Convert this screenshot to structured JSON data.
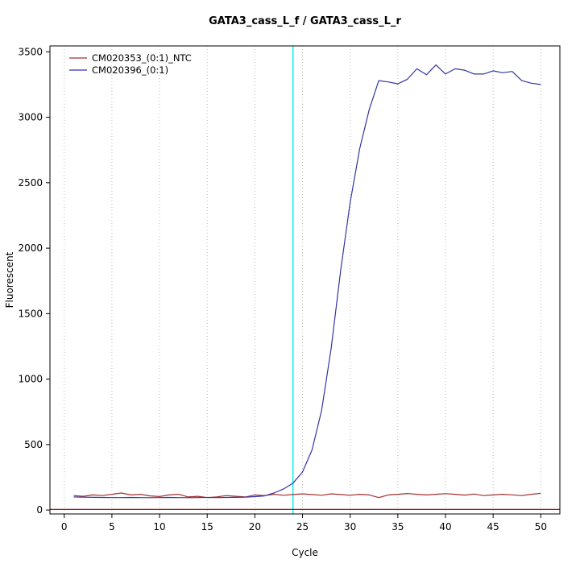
{
  "chart_data": {
    "type": "line",
    "title": "GATA3_cass_L_f / GATA3_cass_L_r",
    "xlabel": "Cycle",
    "ylabel": "Fluorescent",
    "x_ticks": [
      0,
      5,
      10,
      15,
      20,
      25,
      30,
      35,
      40,
      45,
      50
    ],
    "y_ticks": [
      0,
      500,
      1000,
      1500,
      2000,
      2500,
      3000,
      3500
    ],
    "xlim": [
      -1.5,
      52
    ],
    "ylim": [
      -30,
      3545
    ],
    "grid": "vertical-dotted",
    "grid_color": "#b8b8b8",
    "legend_position": "top-left",
    "threshold_line": {
      "y": 5,
      "color": "#8b0000"
    },
    "vline": {
      "x": 24,
      "color": "#00eeee"
    },
    "x": [
      1,
      2,
      3,
      4,
      5,
      6,
      7,
      8,
      9,
      10,
      11,
      12,
      13,
      14,
      15,
      16,
      17,
      18,
      19,
      20,
      21,
      22,
      23,
      24,
      25,
      26,
      27,
      28,
      29,
      30,
      31,
      32,
      33,
      34,
      35,
      36,
      37,
      38,
      39,
      40,
      41,
      42,
      43,
      44,
      45,
      46,
      47,
      48,
      49,
      50
    ],
    "series": [
      {
        "name": "CM020353_(0:1)_NTC",
        "color": "#a03030",
        "values": [
          110,
          105,
          115,
          110,
          120,
          130,
          115,
          120,
          108,
          103,
          115,
          120,
          100,
          105,
          95,
          100,
          110,
          105,
          100,
          115,
          110,
          120,
          113,
          118,
          123,
          118,
          113,
          123,
          118,
          113,
          120,
          115,
          95,
          115,
          120,
          126,
          120,
          115,
          120,
          125,
          120,
          114,
          122,
          110,
          115,
          120,
          116,
          110,
          120,
          128
        ]
      },
      {
        "name": "CM020396_(0:1)",
        "color": "#3434a4",
        "values": [
          100,
          98,
          97,
          96,
          95,
          95,
          96,
          95,
          94,
          95,
          96,
          95,
          94,
          95,
          96,
          95,
          96,
          97,
          98,
          102,
          108,
          130,
          160,
          205,
          290,
          460,
          760,
          1230,
          1830,
          2350,
          2760,
          3060,
          3280,
          3270,
          3255,
          3290,
          3370,
          3325,
          3400,
          3330,
          3370,
          3360,
          3330,
          3330,
          3355,
          3340,
          3350,
          3280,
          3260,
          3250
        ]
      }
    ]
  },
  "layout_labels": {
    "figure_name": "qpcr-amplification-plot"
  }
}
